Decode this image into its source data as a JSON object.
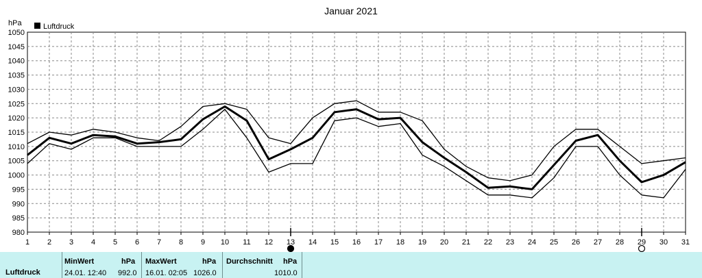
{
  "chart_data": {
    "type": "line",
    "title": "Januar 2021",
    "ylabel": "hPa",
    "legend": "Luftdruck",
    "legend_placement": "top-left",
    "grid": true,
    "ylim": [
      980,
      1050
    ],
    "yticks": [
      980,
      985,
      990,
      995,
      1000,
      1005,
      1010,
      1015,
      1020,
      1025,
      1030,
      1035,
      1040,
      1045,
      1050
    ],
    "x": [
      1,
      2,
      3,
      4,
      5,
      6,
      7,
      8,
      9,
      10,
      11,
      12,
      13,
      14,
      15,
      16,
      17,
      18,
      19,
      20,
      21,
      22,
      23,
      24,
      25,
      26,
      27,
      28,
      29,
      30,
      31
    ],
    "series": [
      {
        "name": "Luftdruck",
        "style": "avg",
        "values": [
          1007,
          1013,
          1011,
          1014,
          1013.5,
          1011,
          1011.5,
          1012.5,
          1019.5,
          1024,
          1019,
          1005.5,
          1009,
          1013,
          1022,
          1023,
          1019.5,
          1020,
          1011.5,
          1006,
          1001,
          995.5,
          996,
          995,
          1003.5,
          1012,
          1014,
          1005,
          997.5,
          1000,
          1004.5
        ]
      },
      {
        "style": "max",
        "values": [
          1011,
          1015,
          1014,
          1016,
          1015,
          1013,
          1012,
          1017,
          1024,
          1025,
          1023,
          1013,
          1011,
          1020,
          1025,
          1026,
          1022,
          1022,
          1019,
          1009,
          1003,
          999,
          998,
          1000,
          1010,
          1016,
          1016,
          1010,
          1004,
          1005,
          1006
        ]
      },
      {
        "style": "min",
        "values": [
          1004,
          1011,
          1009,
          1013,
          1013,
          1010,
          1010,
          1010,
          1016,
          1023,
          1013,
          1001,
          1004,
          1004,
          1019,
          1020,
          1017,
          1018,
          1007,
          1003,
          998,
          993,
          993,
          992,
          999,
          1010,
          1010,
          1000,
          993,
          992,
          1002
        ]
      }
    ],
    "markers": [
      {
        "day": 13,
        "symbol": "full-moon"
      },
      {
        "day": 29,
        "symbol": "new-moon"
      }
    ]
  },
  "footer": {
    "label": "Luftdruck",
    "min_header": "MinWert",
    "min_unit": "hPa",
    "min_time": "24.01.  12:40",
    "min_value": "992.0",
    "max_header": "MaxWert",
    "max_unit": "hPa",
    "max_time": "16.01.  02:05",
    "max_value": "1026.0",
    "avg_header": "Durchschnitt",
    "avg_unit": "hPa",
    "avg_value": "1010.0"
  }
}
